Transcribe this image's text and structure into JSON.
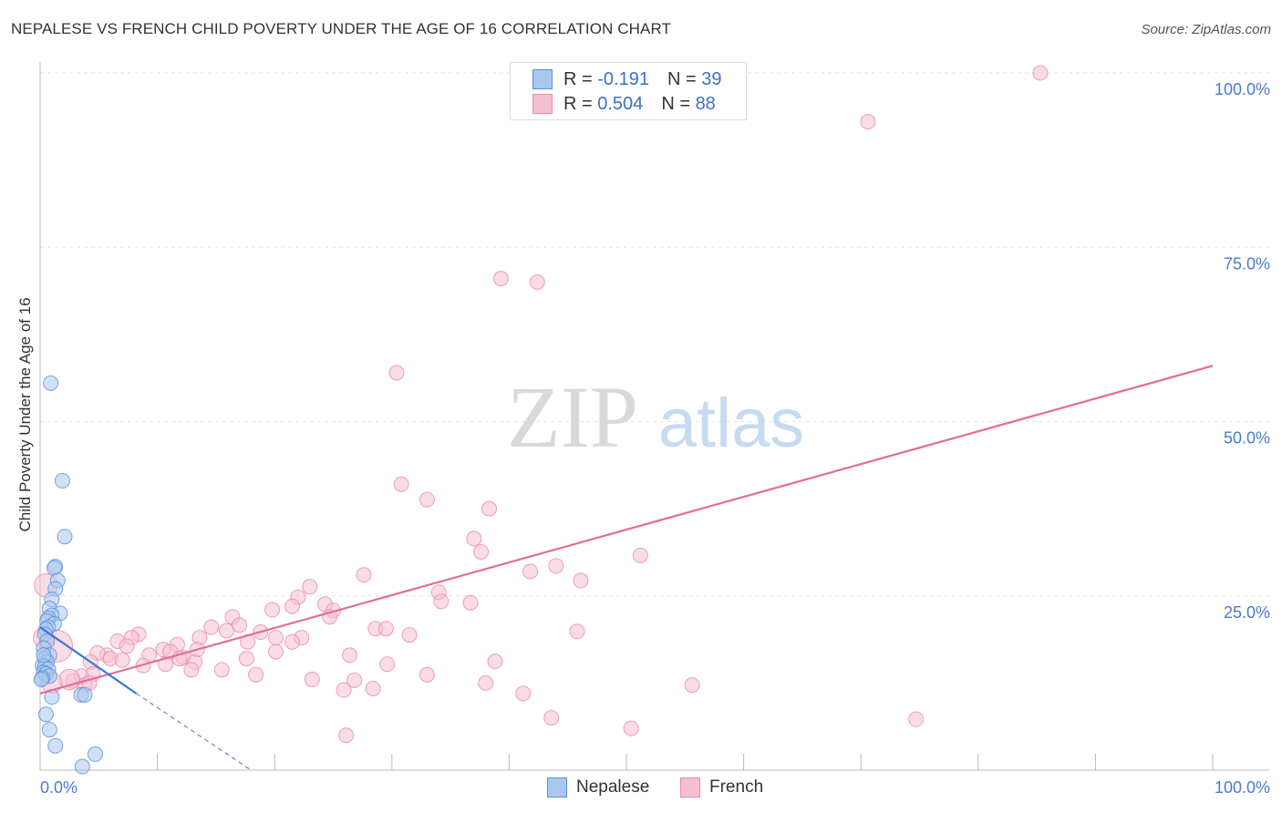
{
  "title": "NEPALESE VS FRENCH CHILD POVERTY UNDER THE AGE OF 16 CORRELATION CHART",
  "source": "Source: ZipAtlas.com",
  "watermark": {
    "zip": "ZIP",
    "atlas": "atlas"
  },
  "legend": {
    "r_label": "R =",
    "n_label": "N =",
    "nepalese": {
      "r": "-0.191",
      "n": "39"
    },
    "french": {
      "r": "0.504",
      "n": "88"
    }
  },
  "colors": {
    "nepalese_fill": "#a9c8f0",
    "nepalese_stroke": "#5b8fd8",
    "nepalese_line": "#3a78d4",
    "french_fill": "#f6bfd0",
    "french_stroke": "#e88aaa",
    "french_line": "#e46d96",
    "tick_text": "#4a7bd0"
  },
  "chart_data": {
    "type": "scatter",
    "title": "NEPALESE VS FRENCH CHILD POVERTY UNDER THE AGE OF 16 CORRELATION CHART",
    "xlabel": "",
    "ylabel": "Child Poverty Under the Age of 16",
    "xlim": [
      0,
      100
    ],
    "ylim": [
      0,
      100
    ],
    "x_tick_labels": [
      "0.0%",
      "100.0%"
    ],
    "y_tick_labels": [
      "25.0%",
      "50.0%",
      "75.0%",
      "100.0%"
    ],
    "y_ticks": [
      25,
      50,
      75,
      100
    ],
    "grid": true,
    "series": [
      {
        "name": "Nepalese",
        "points": [
          [
            0.9,
            55.5
          ],
          [
            1.9,
            41.5
          ],
          [
            2.1,
            33.5
          ],
          [
            1.3,
            29.2
          ],
          [
            1.2,
            29.0
          ],
          [
            1.5,
            27.2
          ],
          [
            1.3,
            26.0
          ],
          [
            1.0,
            24.5
          ],
          [
            0.8,
            23.2
          ],
          [
            1.7,
            22.5
          ],
          [
            1.0,
            22.2
          ],
          [
            0.7,
            21.8
          ],
          [
            0.6,
            21.4
          ],
          [
            1.2,
            21.0
          ],
          [
            0.7,
            20.5
          ],
          [
            0.5,
            20.2
          ],
          [
            0.4,
            19.5
          ],
          [
            0.6,
            18.5
          ],
          [
            0.3,
            17.5
          ],
          [
            0.8,
            16.5
          ],
          [
            0.4,
            16.0
          ],
          [
            0.6,
            15.5
          ],
          [
            0.2,
            15.0
          ],
          [
            0.4,
            14.8
          ],
          [
            0.7,
            14.5
          ],
          [
            0.3,
            14.0
          ],
          [
            0.5,
            13.8
          ],
          [
            0.8,
            13.5
          ],
          [
            0.2,
            13.2
          ],
          [
            0.1,
            13.0
          ],
          [
            1.0,
            10.5
          ],
          [
            0.5,
            8.0
          ],
          [
            0.8,
            5.8
          ],
          [
            1.3,
            3.5
          ],
          [
            3.5,
            10.8
          ],
          [
            3.8,
            10.8
          ],
          [
            4.7,
            2.3
          ],
          [
            3.6,
            0.5
          ],
          [
            0.3,
            16.5
          ]
        ],
        "sizes": [
          1,
          1,
          1,
          1,
          1,
          1,
          1,
          1,
          1,
          1,
          1,
          1,
          1,
          1,
          1,
          1,
          1,
          1,
          1,
          1,
          1,
          1,
          1,
          1,
          1,
          1,
          1,
          1,
          1,
          1,
          1,
          1,
          1,
          1,
          1,
          1,
          1,
          1,
          1
        ],
        "trend": {
          "x": [
            0,
            8.2
          ],
          "y": [
            20.5,
            11.0
          ],
          "dashed_to": [
            18.0,
            0.0
          ]
        }
      },
      {
        "name": "French",
        "points": [
          [
            85.3,
            100.0
          ],
          [
            70.6,
            93.0
          ],
          [
            39.3,
            70.5
          ],
          [
            42.4,
            70.0
          ],
          [
            30.4,
            57.0
          ],
          [
            30.8,
            41.0
          ],
          [
            33.0,
            38.8
          ],
          [
            38.3,
            37.5
          ],
          [
            37.0,
            33.2
          ],
          [
            37.6,
            31.3
          ],
          [
            51.2,
            30.8
          ],
          [
            44.0,
            29.3
          ],
          [
            41.8,
            28.5
          ],
          [
            27.6,
            28.0
          ],
          [
            46.1,
            27.2
          ],
          [
            23.0,
            26.3
          ],
          [
            34.0,
            25.5
          ],
          [
            34.2,
            24.2
          ],
          [
            36.7,
            24.0
          ],
          [
            22.0,
            24.8
          ],
          [
            24.3,
            23.8
          ],
          [
            21.5,
            23.5
          ],
          [
            19.8,
            23.0
          ],
          [
            25.0,
            22.9
          ],
          [
            24.7,
            22.0
          ],
          [
            16.4,
            22.0
          ],
          [
            14.6,
            20.5
          ],
          [
            17.0,
            20.8
          ],
          [
            28.6,
            20.3
          ],
          [
            29.5,
            20.3
          ],
          [
            15.9,
            20.0
          ],
          [
            18.8,
            19.8
          ],
          [
            8.4,
            19.5
          ],
          [
            7.8,
            19.0
          ],
          [
            31.5,
            19.4
          ],
          [
            45.8,
            19.9
          ],
          [
            13.6,
            19.0
          ],
          [
            17.7,
            18.4
          ],
          [
            20.1,
            19.0
          ],
          [
            22.3,
            19.0
          ],
          [
            21.5,
            18.4
          ],
          [
            6.6,
            18.5
          ],
          [
            11.7,
            18.0
          ],
          [
            7.4,
            17.8
          ],
          [
            10.5,
            17.3
          ],
          [
            13.4,
            17.3
          ],
          [
            12.2,
            16.2
          ],
          [
            20.1,
            17.0
          ],
          [
            11.1,
            17.0
          ],
          [
            5.7,
            16.5
          ],
          [
            9.3,
            16.5
          ],
          [
            4.9,
            16.8
          ],
          [
            6.0,
            16.0
          ],
          [
            7.0,
            15.8
          ],
          [
            11.9,
            16.0
          ],
          [
            26.4,
            16.5
          ],
          [
            17.6,
            16.0
          ],
          [
            10.7,
            15.2
          ],
          [
            8.8,
            15.0
          ],
          [
            13.2,
            15.5
          ],
          [
            29.6,
            15.2
          ],
          [
            38.8,
            15.6
          ],
          [
            4.3,
            15.5
          ],
          [
            12.9,
            14.4
          ],
          [
            15.5,
            14.4
          ],
          [
            18.4,
            13.7
          ],
          [
            33.0,
            13.7
          ],
          [
            23.2,
            13.0
          ],
          [
            26.8,
            12.9
          ],
          [
            4.5,
            13.8
          ],
          [
            3.5,
            13.5
          ],
          [
            2.8,
            12.8
          ],
          [
            3.8,
            12.2
          ],
          [
            4.2,
            12.5
          ],
          [
            25.9,
            11.5
          ],
          [
            28.4,
            11.7
          ],
          [
            38.0,
            12.5
          ],
          [
            41.2,
            11.0
          ],
          [
            55.6,
            12.2
          ],
          [
            43.6,
            7.5
          ],
          [
            74.7,
            7.3
          ],
          [
            50.4,
            6.0
          ],
          [
            26.1,
            5.0
          ],
          [
            1.4,
            17.8
          ],
          [
            0.5,
            26.5
          ],
          [
            0.3,
            19.0
          ],
          [
            2.5,
            13.0
          ],
          [
            1.0,
            12.5
          ]
        ],
        "sizes": [
          1,
          1,
          1,
          1,
          1,
          1,
          1,
          1,
          1,
          1,
          1,
          1,
          1,
          1,
          1,
          1,
          1,
          1,
          1,
          1,
          1,
          1,
          1,
          1,
          1,
          1,
          1,
          1,
          1,
          1,
          1,
          1,
          1,
          1,
          1,
          1,
          1,
          1,
          1,
          1,
          1,
          1,
          1,
          1,
          1,
          1,
          1,
          1,
          1,
          1,
          1,
          1,
          1,
          1,
          1,
          1,
          1,
          1,
          1,
          1,
          1,
          1,
          1,
          1,
          1,
          1,
          1,
          1,
          1,
          1,
          1,
          1,
          1,
          1,
          1,
          1,
          1,
          1,
          1,
          1,
          1,
          1,
          1,
          2.2,
          1.6,
          1.4,
          1.4,
          1.4
        ],
        "trend": {
          "x": [
            0,
            100
          ],
          "y": [
            11.0,
            58.0
          ]
        }
      }
    ]
  },
  "bottom_legend": {
    "nepalese": "Nepalese",
    "french": "French"
  }
}
